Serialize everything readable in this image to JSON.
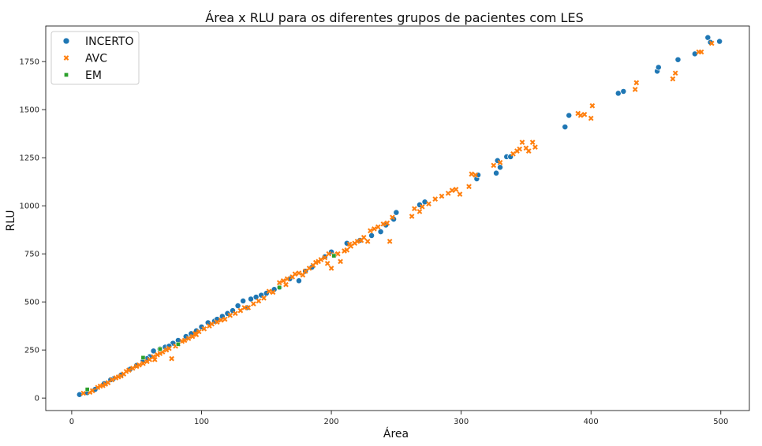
{
  "chart_data": {
    "type": "scatter",
    "title": "Área x RLU para os diferentes grupos de pacientes com LES",
    "xlabel": "Área",
    "ylabel": "RLU",
    "xlim": [
      -20,
      522
    ],
    "ylim": [
      -65,
      1935
    ],
    "xticks": [
      0,
      100,
      200,
      300,
      400,
      500
    ],
    "yticks": [
      0,
      250,
      500,
      750,
      1000,
      1250,
      1500,
      1750
    ],
    "grid": false,
    "legend_position": "top-left",
    "series": [
      {
        "name": "INCERTO",
        "marker": "circle",
        "color": "#1f77b4",
        "points": [
          [
            6,
            18
          ],
          [
            12,
            28
          ],
          [
            18,
            45
          ],
          [
            25,
            75
          ],
          [
            32,
            100
          ],
          [
            38,
            120
          ],
          [
            45,
            150
          ],
          [
            50,
            170
          ],
          [
            55,
            195
          ],
          [
            60,
            215
          ],
          [
            63,
            245
          ],
          [
            68,
            255
          ],
          [
            72,
            265
          ],
          [
            78,
            285
          ],
          [
            82,
            300
          ],
          [
            88,
            320
          ],
          [
            92,
            335
          ],
          [
            96,
            350
          ],
          [
            100,
            370
          ],
          [
            105,
            392
          ],
          [
            110,
            400
          ],
          [
            112,
            410
          ],
          [
            116,
            425
          ],
          [
            120,
            440
          ],
          [
            124,
            455
          ],
          [
            128,
            480
          ],
          [
            132,
            505
          ],
          [
            135,
            470
          ],
          [
            138,
            515
          ],
          [
            142,
            525
          ],
          [
            146,
            535
          ],
          [
            150,
            545
          ],
          [
            156,
            565
          ],
          [
            160,
            575
          ],
          [
            168,
            620
          ],
          [
            175,
            610
          ],
          [
            180,
            660
          ],
          [
            185,
            680
          ],
          [
            195,
            735
          ],
          [
            200,
            760
          ],
          [
            212,
            805
          ],
          [
            222,
            820
          ],
          [
            231,
            845
          ],
          [
            238,
            865
          ],
          [
            242,
            900
          ],
          [
            248,
            930
          ],
          [
            250,
            965
          ],
          [
            268,
            1005
          ],
          [
            272,
            1020
          ],
          [
            312,
            1140
          ],
          [
            313,
            1160
          ],
          [
            327,
            1170
          ],
          [
            328,
            1235
          ],
          [
            330,
            1200
          ],
          [
            335,
            1255
          ],
          [
            338,
            1255
          ],
          [
            380,
            1410
          ],
          [
            383,
            1470
          ],
          [
            421,
            1585
          ],
          [
            425,
            1595
          ],
          [
            451,
            1700
          ],
          [
            452,
            1720
          ],
          [
            467,
            1760
          ],
          [
            480,
            1790
          ],
          [
            490,
            1875
          ],
          [
            492,
            1850
          ],
          [
            499,
            1855
          ],
          [
            30,
            95
          ],
          [
            75,
            270
          ],
          [
            58,
            205
          ]
        ]
      },
      {
        "name": "AVC",
        "marker": "x",
        "color": "#ff7f0e",
        "points": [
          [
            9,
            25
          ],
          [
            14,
            30
          ],
          [
            16,
            38
          ],
          [
            20,
            55
          ],
          [
            22,
            62
          ],
          [
            26,
            72
          ],
          [
            28,
            80
          ],
          [
            31,
            95
          ],
          [
            34,
            105
          ],
          [
            36,
            110
          ],
          [
            40,
            125
          ],
          [
            42,
            138
          ],
          [
            44,
            145
          ],
          [
            47,
            155
          ],
          [
            50,
            165
          ],
          [
            52,
            172
          ],
          [
            55,
            180
          ],
          [
            58,
            190
          ],
          [
            60,
            200
          ],
          [
            63,
            215
          ],
          [
            66,
            225
          ],
          [
            68,
            232
          ],
          [
            70,
            240
          ],
          [
            73,
            250
          ],
          [
            75,
            258
          ],
          [
            77,
            205
          ],
          [
            80,
            270
          ],
          [
            82,
            280
          ],
          [
            85,
            295
          ],
          [
            87,
            300
          ],
          [
            90,
            310
          ],
          [
            93,
            320
          ],
          [
            95,
            335
          ],
          [
            98,
            345
          ],
          [
            102,
            360
          ],
          [
            106,
            375
          ],
          [
            108,
            385
          ],
          [
            112,
            395
          ],
          [
            118,
            410
          ],
          [
            122,
            430
          ],
          [
            126,
            440
          ],
          [
            130,
            455
          ],
          [
            136,
            470
          ],
          [
            140,
            490
          ],
          [
            144,
            505
          ],
          [
            148,
            520
          ],
          [
            155,
            550
          ],
          [
            160,
            600
          ],
          [
            163,
            610
          ],
          [
            166,
            620
          ],
          [
            170,
            630
          ],
          [
            172,
            645
          ],
          [
            175,
            650
          ],
          [
            178,
            640
          ],
          [
            180,
            660
          ],
          [
            183,
            675
          ],
          [
            186,
            690
          ],
          [
            188,
            705
          ],
          [
            190,
            710
          ],
          [
            192,
            720
          ],
          [
            195,
            730
          ],
          [
            197,
            700
          ],
          [
            200,
            675
          ],
          [
            202,
            745
          ],
          [
            205,
            750
          ],
          [
            207,
            710
          ],
          [
            210,
            765
          ],
          [
            212,
            770
          ],
          [
            215,
            790
          ],
          [
            218,
            805
          ],
          [
            220,
            815
          ],
          [
            225,
            835
          ],
          [
            228,
            815
          ],
          [
            230,
            870
          ],
          [
            233,
            880
          ],
          [
            236,
            890
          ],
          [
            240,
            905
          ],
          [
            243,
            910
          ],
          [
            245,
            815
          ],
          [
            247,
            940
          ],
          [
            262,
            945
          ],
          [
            264,
            985
          ],
          [
            268,
            970
          ],
          [
            270,
            995
          ],
          [
            275,
            1010
          ],
          [
            280,
            1035
          ],
          [
            285,
            1050
          ],
          [
            290,
            1065
          ],
          [
            293,
            1080
          ],
          [
            296,
            1085
          ],
          [
            299,
            1060
          ],
          [
            306,
            1100
          ],
          [
            308,
            1165
          ],
          [
            311,
            1160
          ],
          [
            325,
            1210
          ],
          [
            330,
            1225
          ],
          [
            340,
            1270
          ],
          [
            343,
            1285
          ],
          [
            345,
            1295
          ],
          [
            347,
            1330
          ],
          [
            350,
            1300
          ],
          [
            352,
            1285
          ],
          [
            355,
            1330
          ],
          [
            357,
            1305
          ],
          [
            390,
            1480
          ],
          [
            392,
            1470
          ],
          [
            395,
            1475
          ],
          [
            400,
            1455
          ],
          [
            401,
            1520
          ],
          [
            434,
            1605
          ],
          [
            435,
            1640
          ],
          [
            463,
            1660
          ],
          [
            465,
            1690
          ],
          [
            483,
            1800
          ],
          [
            485,
            1800
          ],
          [
            493,
            1845
          ],
          [
            24,
            65
          ],
          [
            38,
            115
          ],
          [
            64,
            200
          ],
          [
            96,
            330
          ],
          [
            115,
            405
          ],
          [
            133,
            470
          ],
          [
            152,
            555
          ],
          [
            165,
            590
          ],
          [
            198,
            750
          ],
          [
            214,
            800
          ],
          [
            223,
            820
          ]
        ]
      },
      {
        "name": "EM",
        "marker": "square",
        "color": "#2ca02c",
        "points": [
          [
            12,
            45
          ],
          [
            55,
            210
          ],
          [
            68,
            255
          ],
          [
            82,
            280
          ],
          [
            202,
            740
          ],
          [
            160,
            575
          ]
        ]
      }
    ]
  }
}
